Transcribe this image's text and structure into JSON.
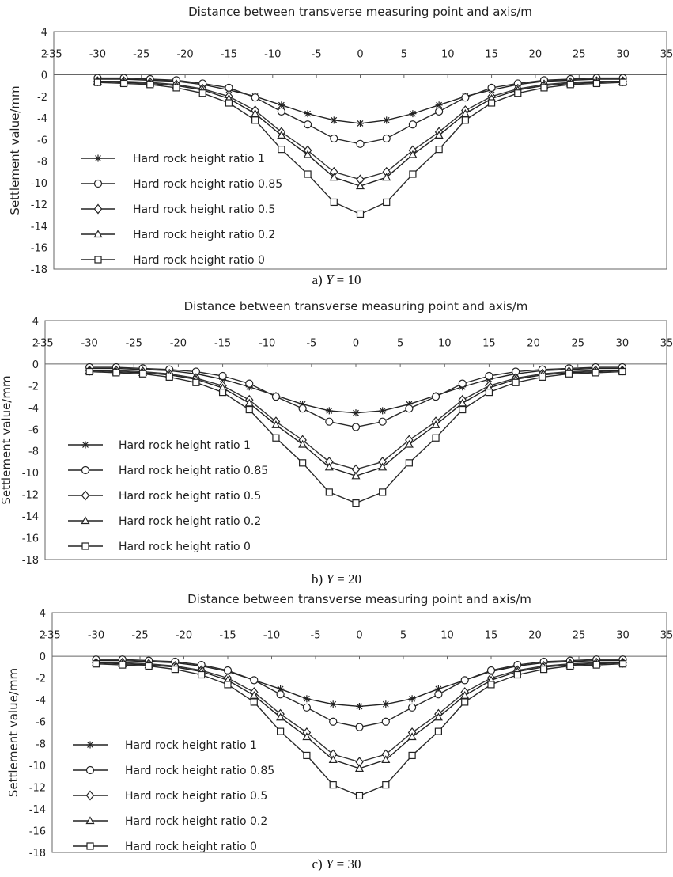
{
  "figure": {
    "panels": [
      {
        "caption_prefix": "a)",
        "caption_var": "Y",
        "caption_eq": "= 10"
      },
      {
        "caption_prefix": "b)",
        "caption_var": "Y",
        "caption_eq": "= 20"
      },
      {
        "caption_prefix": "c)",
        "caption_var": "Y",
        "caption_eq": "= 30"
      }
    ]
  },
  "chart_data": [
    {
      "type": "line",
      "title": "Distance between transverse measuring point and axis/m",
      "xlabel": "",
      "ylabel": "Settlement value/mm",
      "xlim": [
        -35,
        35
      ],
      "ylim": [
        -18,
        4
      ],
      "x_ticks": [
        -35,
        -30,
        -25,
        -20,
        -15,
        -10,
        -5,
        0,
        5,
        10,
        15,
        20,
        25,
        30,
        35
      ],
      "y_ticks": [
        4,
        2,
        0,
        -2,
        -4,
        -6,
        -8,
        -10,
        -12,
        -14,
        -16,
        -18
      ],
      "legend_position": "lower-left",
      "x": [
        -30,
        -27,
        -24,
        -21,
        -18,
        -15,
        -12,
        -9,
        -6,
        -3,
        0,
        3,
        6,
        9,
        12,
        15,
        18,
        21,
        24,
        27,
        30
      ],
      "series": [
        {
          "name": "Hard rock height ratio 1",
          "marker": "asterisk",
          "values": [
            -0.4,
            -0.4,
            -0.5,
            -0.6,
            -0.9,
            -1.4,
            -2.0,
            -2.8,
            -3.6,
            -4.2,
            -4.5,
            -4.2,
            -3.6,
            -2.8,
            -2.0,
            -1.4,
            -0.9,
            -0.6,
            -0.5,
            -0.4,
            -0.4
          ]
        },
        {
          "name": "Hard rock height ratio 0.85",
          "marker": "circle",
          "values": [
            -0.3,
            -0.3,
            -0.4,
            -0.5,
            -0.8,
            -1.2,
            -2.1,
            -3.4,
            -4.6,
            -5.9,
            -6.4,
            -5.9,
            -4.6,
            -3.4,
            -2.1,
            -1.2,
            -0.8,
            -0.5,
            -0.4,
            -0.3,
            -0.3
          ]
        },
        {
          "name": "Hard rock height ratio 0.5",
          "marker": "diamond",
          "values": [
            -0.6,
            -0.6,
            -0.7,
            -0.9,
            -1.3,
            -2.0,
            -3.3,
            -5.3,
            -7.0,
            -9.0,
            -9.7,
            -9.0,
            -7.0,
            -5.3,
            -3.3,
            -2.0,
            -1.3,
            -0.9,
            -0.7,
            -0.6,
            -0.6
          ]
        },
        {
          "name": "Hard rock height ratio 0.2",
          "marker": "triangle",
          "values": [
            -0.6,
            -0.7,
            -0.8,
            -1.0,
            -1.4,
            -2.2,
            -3.6,
            -5.6,
            -7.4,
            -9.5,
            -10.3,
            -9.5,
            -7.4,
            -5.6,
            -3.6,
            -2.2,
            -1.4,
            -1.0,
            -0.8,
            -0.7,
            -0.6
          ]
        },
        {
          "name": "Hard rock height ratio 0",
          "marker": "square",
          "values": [
            -0.7,
            -0.8,
            -0.9,
            -1.2,
            -1.7,
            -2.6,
            -4.2,
            -6.9,
            -9.2,
            -11.8,
            -12.9,
            -11.8,
            -9.2,
            -6.9,
            -4.2,
            -2.6,
            -1.7,
            -1.2,
            -0.9,
            -0.8,
            -0.7
          ]
        }
      ]
    },
    {
      "type": "line",
      "title": "Distance between transverse measuring point and axis/m",
      "xlabel": "",
      "ylabel": "Settlement value/mm",
      "xlim": [
        -35,
        35
      ],
      "ylim": [
        -18,
        4
      ],
      "x_ticks": [
        -35,
        -30,
        -25,
        -20,
        -15,
        -10,
        -5,
        0,
        5,
        10,
        15,
        20,
        25,
        30,
        35
      ],
      "y_ticks": [
        4,
        2,
        0,
        -2,
        -4,
        -6,
        -8,
        -10,
        -12,
        -14,
        -16,
        -18
      ],
      "legend_position": "lower-left",
      "x": [
        -30,
        -27,
        -24,
        -21,
        -18,
        -15,
        -12,
        -9,
        -6,
        -3,
        0,
        3,
        6,
        9,
        12,
        15,
        18,
        21,
        24,
        27,
        30
      ],
      "series": [
        {
          "name": "Hard rock height ratio 1",
          "marker": "asterisk",
          "values": [
            -0.4,
            -0.4,
            -0.5,
            -0.6,
            -0.9,
            -1.4,
            -2.1,
            -2.9,
            -3.7,
            -4.3,
            -4.5,
            -4.3,
            -3.7,
            -2.9,
            -2.1,
            -1.4,
            -0.9,
            -0.6,
            -0.5,
            -0.4,
            -0.4
          ]
        },
        {
          "name": "Hard rock height ratio 0.85",
          "marker": "circle",
          "values": [
            -0.3,
            -0.3,
            -0.4,
            -0.5,
            -0.7,
            -1.1,
            -1.8,
            -3.0,
            -4.1,
            -5.3,
            -5.8,
            -5.3,
            -4.1,
            -3.0,
            -1.8,
            -1.1,
            -0.7,
            -0.5,
            -0.4,
            -0.3,
            -0.3
          ]
        },
        {
          "name": "Hard rock height ratio 0.5",
          "marker": "diamond",
          "values": [
            -0.6,
            -0.6,
            -0.7,
            -0.9,
            -1.3,
            -2.0,
            -3.3,
            -5.3,
            -7.0,
            -9.0,
            -9.7,
            -9.0,
            -7.0,
            -5.3,
            -3.3,
            -2.0,
            -1.3,
            -0.9,
            -0.7,
            -0.6,
            -0.6
          ]
        },
        {
          "name": "Hard rock height ratio 0.2",
          "marker": "triangle",
          "values": [
            -0.6,
            -0.7,
            -0.8,
            -1.0,
            -1.4,
            -2.2,
            -3.6,
            -5.6,
            -7.4,
            -9.5,
            -10.3,
            -9.5,
            -7.4,
            -5.6,
            -3.6,
            -2.2,
            -1.4,
            -1.0,
            -0.8,
            -0.7,
            -0.6
          ]
        },
        {
          "name": "Hard rock height ratio 0",
          "marker": "square",
          "values": [
            -0.7,
            -0.8,
            -0.9,
            -1.2,
            -1.7,
            -2.6,
            -4.2,
            -6.8,
            -9.1,
            -11.8,
            -12.8,
            -11.8,
            -9.1,
            -6.8,
            -4.2,
            -2.6,
            -1.7,
            -1.2,
            -0.9,
            -0.8,
            -0.7
          ]
        }
      ]
    },
    {
      "type": "line",
      "title": "Distance between transverse measuring point and axis/m",
      "xlabel": "",
      "ylabel": "Settlement value/mm",
      "xlim": [
        -35,
        35
      ],
      "ylim": [
        -18,
        4
      ],
      "x_ticks": [
        -35,
        -30,
        -25,
        -20,
        -15,
        -10,
        -5,
        0,
        5,
        10,
        15,
        20,
        25,
        30,
        35
      ],
      "y_ticks": [
        4,
        2,
        0,
        -2,
        -4,
        -6,
        -8,
        -10,
        -12,
        -14,
        -16,
        -18
      ],
      "legend_position": "lower-left",
      "x": [
        -30,
        -27,
        -24,
        -21,
        -18,
        -15,
        -12,
        -9,
        -6,
        -3,
        0,
        3,
        6,
        9,
        12,
        15,
        18,
        21,
        24,
        27,
        30
      ],
      "series": [
        {
          "name": "Hard rock height ratio 1",
          "marker": "asterisk",
          "values": [
            -0.4,
            -0.4,
            -0.5,
            -0.6,
            -0.9,
            -1.4,
            -2.2,
            -3.0,
            -3.9,
            -4.4,
            -4.6,
            -4.4,
            -3.9,
            -3.0,
            -2.2,
            -1.4,
            -0.9,
            -0.6,
            -0.5,
            -0.4,
            -0.4
          ]
        },
        {
          "name": "Hard rock height ratio 0.85",
          "marker": "circle",
          "values": [
            -0.3,
            -0.3,
            -0.4,
            -0.5,
            -0.8,
            -1.3,
            -2.2,
            -3.5,
            -4.7,
            -6.0,
            -6.5,
            -6.0,
            -4.7,
            -3.5,
            -2.2,
            -1.3,
            -0.8,
            -0.5,
            -0.4,
            -0.3,
            -0.3
          ]
        },
        {
          "name": "Hard rock height ratio 0.5",
          "marker": "diamond",
          "values": [
            -0.6,
            -0.6,
            -0.7,
            -0.9,
            -1.3,
            -2.0,
            -3.3,
            -5.3,
            -7.0,
            -9.0,
            -9.7,
            -9.0,
            -7.0,
            -5.3,
            -3.3,
            -2.0,
            -1.3,
            -0.9,
            -0.7,
            -0.6,
            -0.6
          ]
        },
        {
          "name": "Hard rock height ratio 0.2",
          "marker": "triangle",
          "values": [
            -0.6,
            -0.7,
            -0.8,
            -1.0,
            -1.4,
            -2.2,
            -3.6,
            -5.6,
            -7.4,
            -9.5,
            -10.3,
            -9.5,
            -7.4,
            -5.6,
            -3.6,
            -2.2,
            -1.4,
            -1.0,
            -0.8,
            -0.7,
            -0.6
          ]
        },
        {
          "name": "Hard rock height ratio 0",
          "marker": "square",
          "values": [
            -0.7,
            -0.8,
            -0.9,
            -1.2,
            -1.7,
            -2.6,
            -4.2,
            -6.9,
            -9.1,
            -11.8,
            -12.8,
            -11.8,
            -9.1,
            -6.9,
            -4.2,
            -2.6,
            -1.7,
            -1.2,
            -0.9,
            -0.8,
            -0.7
          ]
        }
      ]
    }
  ]
}
